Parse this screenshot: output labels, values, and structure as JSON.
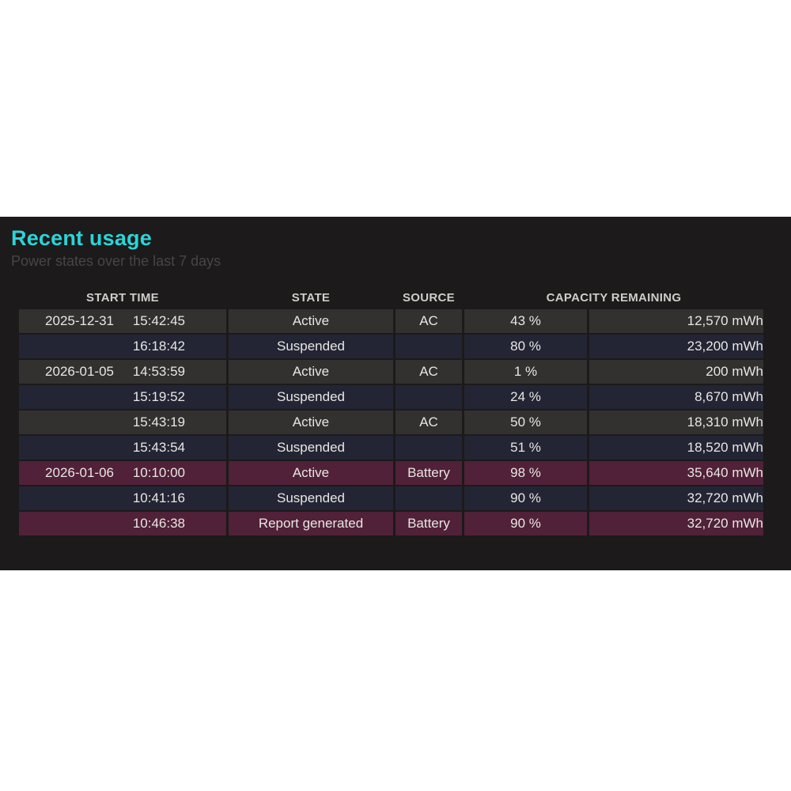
{
  "panel": {
    "title": "Recent usage",
    "subtitle": "Power states over the last 7 days",
    "colors": {
      "accent_title": "#2bd4d8",
      "panel_bg": "#1c1a1a",
      "row_active_bg": "#323130",
      "row_suspended_bg": "#232534",
      "row_battery_bg": "#502138",
      "cell_text": "#e8e6e3",
      "header_text": "#cfcdc9",
      "subtitle_text": "#464646",
      "page_bg": "#ffffff"
    }
  },
  "table": {
    "headers": {
      "start_time": "START TIME",
      "state": "STATE",
      "source": "SOURCE",
      "capacity_remaining": "CAPACITY REMAINING"
    },
    "rows": [
      {
        "date": "2025-12-31",
        "time": "15:42:45",
        "state": "Active",
        "source": "AC",
        "percent": "43 %",
        "energy": "12,570 mWh"
      },
      {
        "date": "",
        "time": "16:18:42",
        "state": "Suspended",
        "source": "",
        "percent": "80 %",
        "energy": "23,200 mWh"
      },
      {
        "date": "2026-01-05",
        "time": "14:53:59",
        "state": "Active",
        "source": "AC",
        "percent": "1 %",
        "energy": "200 mWh"
      },
      {
        "date": "",
        "time": "15:19:52",
        "state": "Suspended",
        "source": "",
        "percent": "24 %",
        "energy": "8,670 mWh"
      },
      {
        "date": "",
        "time": "15:43:19",
        "state": "Active",
        "source": "AC",
        "percent": "50 %",
        "energy": "18,310 mWh"
      },
      {
        "date": "",
        "time": "15:43:54",
        "state": "Suspended",
        "source": "",
        "percent": "51 %",
        "energy": "18,520 mWh"
      },
      {
        "date": "2026-01-06",
        "time": "10:10:00",
        "state": "Active",
        "source": "Battery",
        "percent": "98 %",
        "energy": "35,640 mWh"
      },
      {
        "date": "",
        "time": "10:41:16",
        "state": "Suspended",
        "source": "",
        "percent": "90 %",
        "energy": "32,720 mWh"
      },
      {
        "date": "",
        "time": "10:46:38",
        "state": "Report generated",
        "source": "Battery",
        "percent": "90 %",
        "energy": "32,720 mWh"
      }
    ]
  }
}
